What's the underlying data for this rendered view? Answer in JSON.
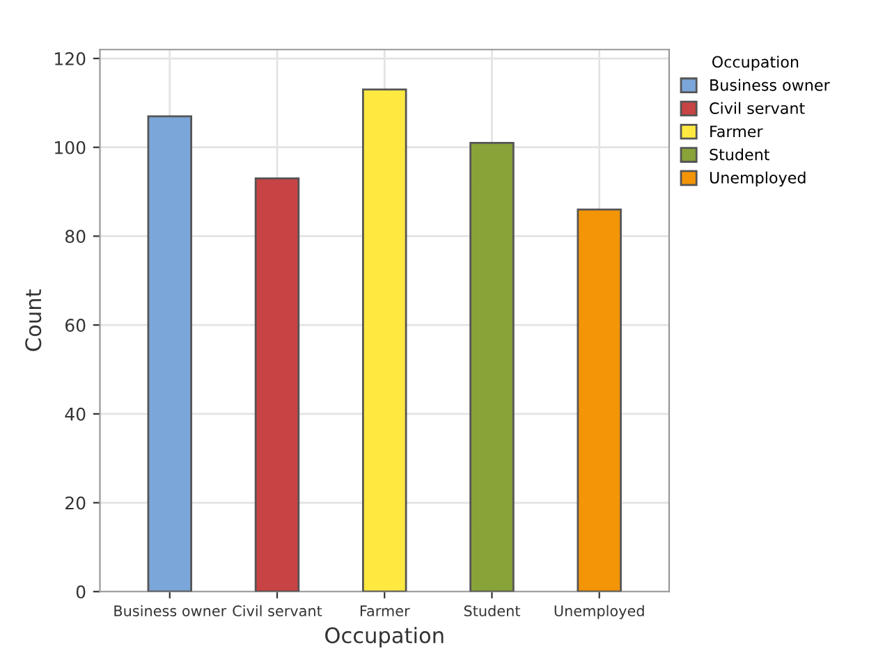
{
  "chart_data": {
    "type": "bar",
    "xlabel": "Occupation",
    "ylabel": "Count",
    "legend_title": "Occupation",
    "categories": [
      "Business owner",
      "Civil servant",
      "Farmer",
      "Student",
      "Unemployed"
    ],
    "series": [
      {
        "name": "Business owner",
        "color": "#7ba6d9",
        "values": [
          107,
          null,
          null,
          null,
          null
        ]
      },
      {
        "name": "Civil servant",
        "color": "#c84343",
        "values": [
          null,
          93,
          null,
          null,
          null
        ]
      },
      {
        "name": "Farmer",
        "color": "#ffe940",
        "values": [
          null,
          null,
          113,
          null,
          null
        ]
      },
      {
        "name": "Student",
        "color": "#88a338",
        "values": [
          null,
          null,
          null,
          101,
          null
        ]
      },
      {
        "name": "Unemployed",
        "color": "#f39507",
        "values": [
          null,
          null,
          null,
          null,
          86
        ]
      }
    ],
    "ylim": [
      0,
      122
    ],
    "yticks": [
      0,
      20,
      40,
      60,
      80,
      100,
      120
    ],
    "grid": true,
    "legend": "top right"
  }
}
